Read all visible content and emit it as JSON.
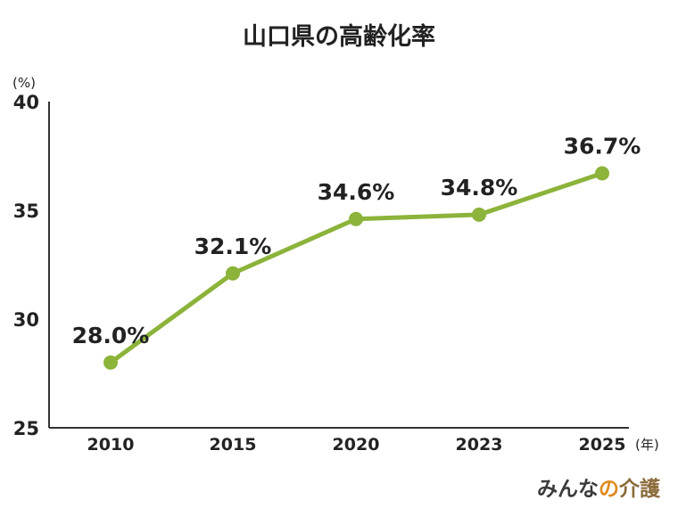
{
  "chart_data": {
    "type": "line",
    "title": "山口県の高齢化率",
    "ylabel": "(%)",
    "xlabel": "(年)",
    "categories": [
      "2010",
      "2015",
      "2020",
      "2023",
      "2025"
    ],
    "values": [
      28.0,
      32.1,
      34.6,
      34.8,
      36.7
    ],
    "data_labels": [
      "28.0%",
      "32.1%",
      "34.6%",
      "34.8%",
      "36.7%"
    ],
    "ylim": [
      25,
      40
    ],
    "yticks": [
      "25",
      "30",
      "35",
      "40"
    ],
    "grid": false,
    "legend": "none",
    "colors": {
      "line": "#8cb33a",
      "axis": "#333333"
    }
  },
  "brand": {
    "part1": "みんな",
    "part2": "の",
    "part3": "介護"
  }
}
